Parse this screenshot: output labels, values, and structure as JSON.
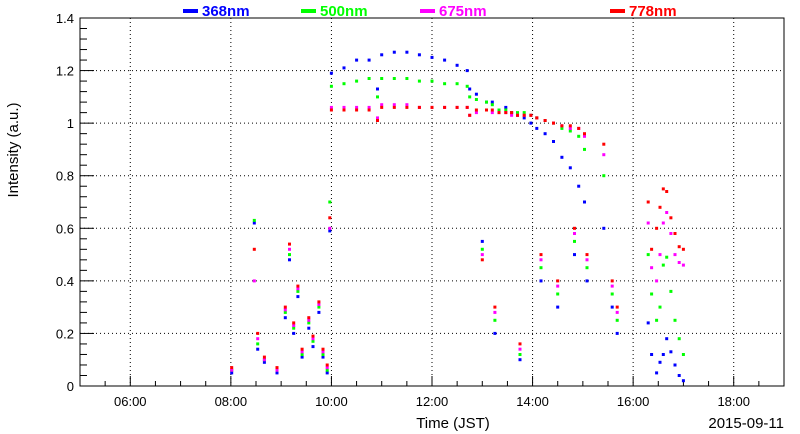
{
  "chart_data": {
    "type": "scatter",
    "title": "",
    "xlabel": "Time (JST)",
    "ylabel": "Intensity (a.u.)",
    "date_label": "2015-09-11",
    "xlim": [
      "05:00",
      "19:00"
    ],
    "ylim": [
      0,
      1.4
    ],
    "grid": true,
    "legend_position": "top",
    "x_ticks": [
      "06:00",
      "08:00",
      "10:00",
      "12:00",
      "14:00",
      "16:00",
      "18:00"
    ],
    "y_ticks": [
      "0",
      "0.2",
      "0.4",
      "0.6",
      "0.8",
      "1",
      "1.2",
      "1.4"
    ],
    "series": [
      {
        "name": "368nm",
        "color": "#0000ff",
        "points": [
          [
            "08:01",
            0.05
          ],
          [
            "08:28",
            0.62
          ],
          [
            "08:32",
            0.14
          ],
          [
            "08:40",
            0.09
          ],
          [
            "08:55",
            0.05
          ],
          [
            "09:05",
            0.26
          ],
          [
            "09:10",
            0.48
          ],
          [
            "09:15",
            0.2
          ],
          [
            "09:20",
            0.34
          ],
          [
            "09:25",
            0.11
          ],
          [
            "09:33",
            0.22
          ],
          [
            "09:38",
            0.15
          ],
          [
            "09:45",
            0.28
          ],
          [
            "09:50",
            0.11
          ],
          [
            "09:55",
            0.05
          ],
          [
            "09:58",
            0.59
          ],
          [
            "10:00",
            1.19
          ],
          [
            "10:15",
            1.21
          ],
          [
            "10:30",
            1.24
          ],
          [
            "10:45",
            1.24
          ],
          [
            "10:55",
            1.13
          ],
          [
            "11:00",
            1.26
          ],
          [
            "11:15",
            1.27
          ],
          [
            "11:30",
            1.27
          ],
          [
            "11:45",
            1.26
          ],
          [
            "12:00",
            1.25
          ],
          [
            "12:15",
            1.24
          ],
          [
            "12:30",
            1.22
          ],
          [
            "12:42",
            1.2
          ],
          [
            "12:45",
            1.13
          ],
          [
            "12:53",
            1.11
          ],
          [
            "13:05",
            1.08
          ],
          [
            "13:12",
            1.08
          ],
          [
            "13:20",
            1.05
          ],
          [
            "13:28",
            1.06
          ],
          [
            "13:35",
            1.04
          ],
          [
            "13:42",
            1.03
          ],
          [
            "13:50",
            1.02
          ],
          [
            "13:58",
            1.0
          ],
          [
            "14:05",
            0.98
          ],
          [
            "14:15",
            0.96
          ],
          [
            "14:25",
            0.93
          ],
          [
            "14:35",
            0.87
          ],
          [
            "14:45",
            0.83
          ],
          [
            "14:55",
            0.76
          ],
          [
            "15:02",
            0.7
          ],
          [
            "13:00",
            0.55
          ],
          [
            "13:15",
            0.2
          ],
          [
            "13:45",
            0.1
          ],
          [
            "14:10",
            0.4
          ],
          [
            "14:30",
            0.3
          ],
          [
            "14:50",
            0.5
          ],
          [
            "15:05",
            0.4
          ],
          [
            "15:25",
            0.6
          ],
          [
            "15:35",
            0.3
          ],
          [
            "15:41",
            0.2
          ],
          [
            "16:18",
            0.24
          ],
          [
            "16:22",
            0.12
          ],
          [
            "16:28",
            0.05
          ],
          [
            "16:32",
            0.09
          ],
          [
            "16:36",
            0.12
          ],
          [
            "16:40",
            0.18
          ],
          [
            "16:45",
            0.13
          ],
          [
            "16:50",
            0.08
          ],
          [
            "16:55",
            0.04
          ],
          [
            "17:00",
            0.02
          ]
        ]
      },
      {
        "name": "500nm",
        "color": "#00ff00",
        "points": [
          [
            "08:01",
            0.06
          ],
          [
            "08:28",
            0.63
          ],
          [
            "08:32",
            0.16
          ],
          [
            "08:40",
            0.1
          ],
          [
            "08:55",
            0.06
          ],
          [
            "09:05",
            0.28
          ],
          [
            "09:10",
            0.5
          ],
          [
            "09:15",
            0.22
          ],
          [
            "09:20",
            0.36
          ],
          [
            "09:25",
            0.12
          ],
          [
            "09:33",
            0.24
          ],
          [
            "09:38",
            0.17
          ],
          [
            "09:45",
            0.3
          ],
          [
            "09:50",
            0.12
          ],
          [
            "09:55",
            0.06
          ],
          [
            "09:58",
            0.7
          ],
          [
            "10:00",
            1.14
          ],
          [
            "10:15",
            1.15
          ],
          [
            "10:30",
            1.16
          ],
          [
            "10:45",
            1.17
          ],
          [
            "10:55",
            1.1
          ],
          [
            "11:00",
            1.17
          ],
          [
            "11:15",
            1.17
          ],
          [
            "11:30",
            1.17
          ],
          [
            "11:45",
            1.16
          ],
          [
            "12:00",
            1.16
          ],
          [
            "12:15",
            1.15
          ],
          [
            "12:30",
            1.15
          ],
          [
            "12:42",
            1.14
          ],
          [
            "12:45",
            1.1
          ],
          [
            "12:53",
            1.09
          ],
          [
            "13:05",
            1.08
          ],
          [
            "13:12",
            1.07
          ],
          [
            "13:20",
            1.05
          ],
          [
            "13:28",
            1.05
          ],
          [
            "13:35",
            1.04
          ],
          [
            "13:42",
            1.04
          ],
          [
            "13:50",
            1.04
          ],
          [
            "13:58",
            1.03
          ],
          [
            "14:05",
            1.02
          ],
          [
            "14:15",
            1.01
          ],
          [
            "14:25",
            1.0
          ],
          [
            "14:35",
            0.98
          ],
          [
            "14:45",
            0.97
          ],
          [
            "14:55",
            0.95
          ],
          [
            "15:02",
            0.9
          ],
          [
            "13:00",
            0.52
          ],
          [
            "13:15",
            0.25
          ],
          [
            "13:45",
            0.12
          ],
          [
            "14:10",
            0.45
          ],
          [
            "14:30",
            0.35
          ],
          [
            "14:50",
            0.55
          ],
          [
            "15:05",
            0.45
          ],
          [
            "15:25",
            0.8
          ],
          [
            "15:35",
            0.35
          ],
          [
            "15:41",
            0.25
          ],
          [
            "16:18",
            0.5
          ],
          [
            "16:22",
            0.35
          ],
          [
            "16:28",
            0.25
          ],
          [
            "16:32",
            0.3
          ],
          [
            "16:36",
            0.46
          ],
          [
            "16:40",
            0.49
          ],
          [
            "16:45",
            0.36
          ],
          [
            "16:50",
            0.25
          ],
          [
            "16:55",
            0.18
          ],
          [
            "17:00",
            0.12
          ]
        ]
      },
      {
        "name": "675nm",
        "color": "#ff00ff",
        "points": [
          [
            "08:01",
            0.06
          ],
          [
            "08:28",
            0.4
          ],
          [
            "08:32",
            0.18
          ],
          [
            "08:40",
            0.1
          ],
          [
            "08:55",
            0.06
          ],
          [
            "09:05",
            0.29
          ],
          [
            "09:10",
            0.52
          ],
          [
            "09:15",
            0.23
          ],
          [
            "09:20",
            0.37
          ],
          [
            "09:25",
            0.13
          ],
          [
            "09:33",
            0.25
          ],
          [
            "09:38",
            0.18
          ],
          [
            "09:45",
            0.31
          ],
          [
            "09:50",
            0.13
          ],
          [
            "09:55",
            0.07
          ],
          [
            "09:58",
            0.6
          ],
          [
            "10:00",
            1.06
          ],
          [
            "10:15",
            1.06
          ],
          [
            "10:30",
            1.06
          ],
          [
            "10:45",
            1.06
          ],
          [
            "10:55",
            1.02
          ],
          [
            "11:00",
            1.07
          ],
          [
            "11:15",
            1.07
          ],
          [
            "11:30",
            1.07
          ],
          [
            "11:45",
            1.06
          ],
          [
            "12:00",
            1.06
          ],
          [
            "12:15",
            1.06
          ],
          [
            "12:30",
            1.06
          ],
          [
            "12:42",
            1.06
          ],
          [
            "12:45",
            1.03
          ],
          [
            "12:53",
            1.04
          ],
          [
            "13:05",
            1.05
          ],
          [
            "13:12",
            1.04
          ],
          [
            "13:20",
            1.04
          ],
          [
            "13:28",
            1.04
          ],
          [
            "13:35",
            1.03
          ],
          [
            "13:42",
            1.03
          ],
          [
            "13:50",
            1.03
          ],
          [
            "13:58",
            1.03
          ],
          [
            "14:05",
            1.02
          ],
          [
            "14:15",
            1.01
          ],
          [
            "14:25",
            1.0
          ],
          [
            "14:35",
            0.99
          ],
          [
            "14:45",
            0.98
          ],
          [
            "14:55",
            0.98
          ],
          [
            "15:02",
            0.95
          ],
          [
            "13:00",
            0.5
          ],
          [
            "13:15",
            0.28
          ],
          [
            "13:45",
            0.14
          ],
          [
            "14:10",
            0.48
          ],
          [
            "14:30",
            0.38
          ],
          [
            "14:50",
            0.58
          ],
          [
            "15:05",
            0.48
          ],
          [
            "15:25",
            0.88
          ],
          [
            "15:35",
            0.38
          ],
          [
            "15:41",
            0.28
          ],
          [
            "16:18",
            0.62
          ],
          [
            "16:22",
            0.45
          ],
          [
            "16:28",
            0.4
          ],
          [
            "16:32",
            0.5
          ],
          [
            "16:36",
            0.62
          ],
          [
            "16:40",
            0.66
          ],
          [
            "16:45",
            0.58
          ],
          [
            "16:50",
            0.5
          ],
          [
            "16:55",
            0.47
          ],
          [
            "17:00",
            0.46
          ]
        ]
      },
      {
        "name": "778nm",
        "color": "#ff0000",
        "points": [
          [
            "08:01",
            0.07
          ],
          [
            "08:28",
            0.52
          ],
          [
            "08:32",
            0.2
          ],
          [
            "08:40",
            0.11
          ],
          [
            "08:55",
            0.07
          ],
          [
            "09:05",
            0.3
          ],
          [
            "09:10",
            0.54
          ],
          [
            "09:15",
            0.24
          ],
          [
            "09:20",
            0.38
          ],
          [
            "09:25",
            0.14
          ],
          [
            "09:33",
            0.26
          ],
          [
            "09:38",
            0.19
          ],
          [
            "09:45",
            0.32
          ],
          [
            "09:50",
            0.14
          ],
          [
            "09:55",
            0.08
          ],
          [
            "09:58",
            0.64
          ],
          [
            "10:00",
            1.05
          ],
          [
            "10:15",
            1.05
          ],
          [
            "10:30",
            1.05
          ],
          [
            "10:45",
            1.05
          ],
          [
            "10:55",
            1.01
          ],
          [
            "11:00",
            1.06
          ],
          [
            "11:15",
            1.06
          ],
          [
            "11:30",
            1.06
          ],
          [
            "11:45",
            1.06
          ],
          [
            "12:00",
            1.06
          ],
          [
            "12:15",
            1.06
          ],
          [
            "12:30",
            1.06
          ],
          [
            "12:42",
            1.06
          ],
          [
            "12:45",
            1.03
          ],
          [
            "12:53",
            1.05
          ],
          [
            "13:05",
            1.05
          ],
          [
            "13:12",
            1.05
          ],
          [
            "13:20",
            1.04
          ],
          [
            "13:28",
            1.04
          ],
          [
            "13:35",
            1.04
          ],
          [
            "13:42",
            1.03
          ],
          [
            "13:50",
            1.03
          ],
          [
            "13:58",
            1.03
          ],
          [
            "14:05",
            1.02
          ],
          [
            "14:15",
            1.01
          ],
          [
            "14:25",
            1.0
          ],
          [
            "14:35",
            0.99
          ],
          [
            "14:45",
            0.99
          ],
          [
            "14:55",
            0.98
          ],
          [
            "15:02",
            0.96
          ],
          [
            "13:00",
            0.48
          ],
          [
            "13:15",
            0.3
          ],
          [
            "13:45",
            0.16
          ],
          [
            "14:10",
            0.5
          ],
          [
            "14:30",
            0.4
          ],
          [
            "14:50",
            0.6
          ],
          [
            "15:05",
            0.5
          ],
          [
            "15:25",
            0.92
          ],
          [
            "15:35",
            0.4
          ],
          [
            "15:41",
            0.3
          ],
          [
            "16:18",
            0.7
          ],
          [
            "16:22",
            0.52
          ],
          [
            "16:28",
            0.6
          ],
          [
            "16:32",
            0.68
          ],
          [
            "16:36",
            0.75
          ],
          [
            "16:40",
            0.74
          ],
          [
            "16:45",
            0.64
          ],
          [
            "16:50",
            0.58
          ],
          [
            "16:55",
            0.53
          ],
          [
            "17:00",
            0.52
          ]
        ]
      }
    ]
  }
}
